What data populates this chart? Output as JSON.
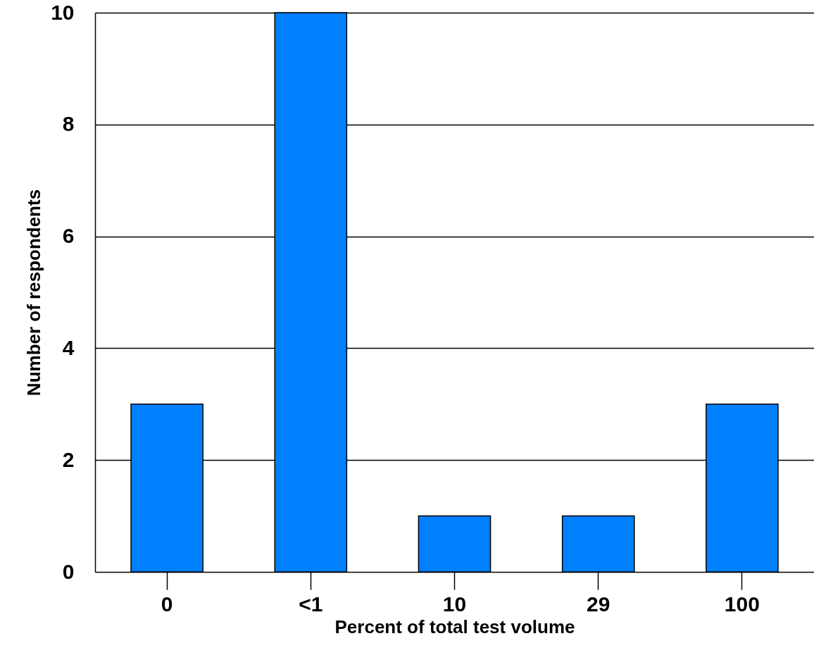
{
  "chart_data": {
    "type": "bar",
    "xlabel": "Percent of total test volume",
    "ylabel": "Number of respondents",
    "categories": [
      "0",
      "<1",
      "10",
      "29",
      "100"
    ],
    "values": [
      3,
      10,
      1,
      1,
      3
    ],
    "color": "#0080ff",
    "ylim": [
      0,
      10
    ],
    "yticks": [
      0,
      2,
      4,
      6,
      8,
      10
    ],
    "grid": "y"
  }
}
